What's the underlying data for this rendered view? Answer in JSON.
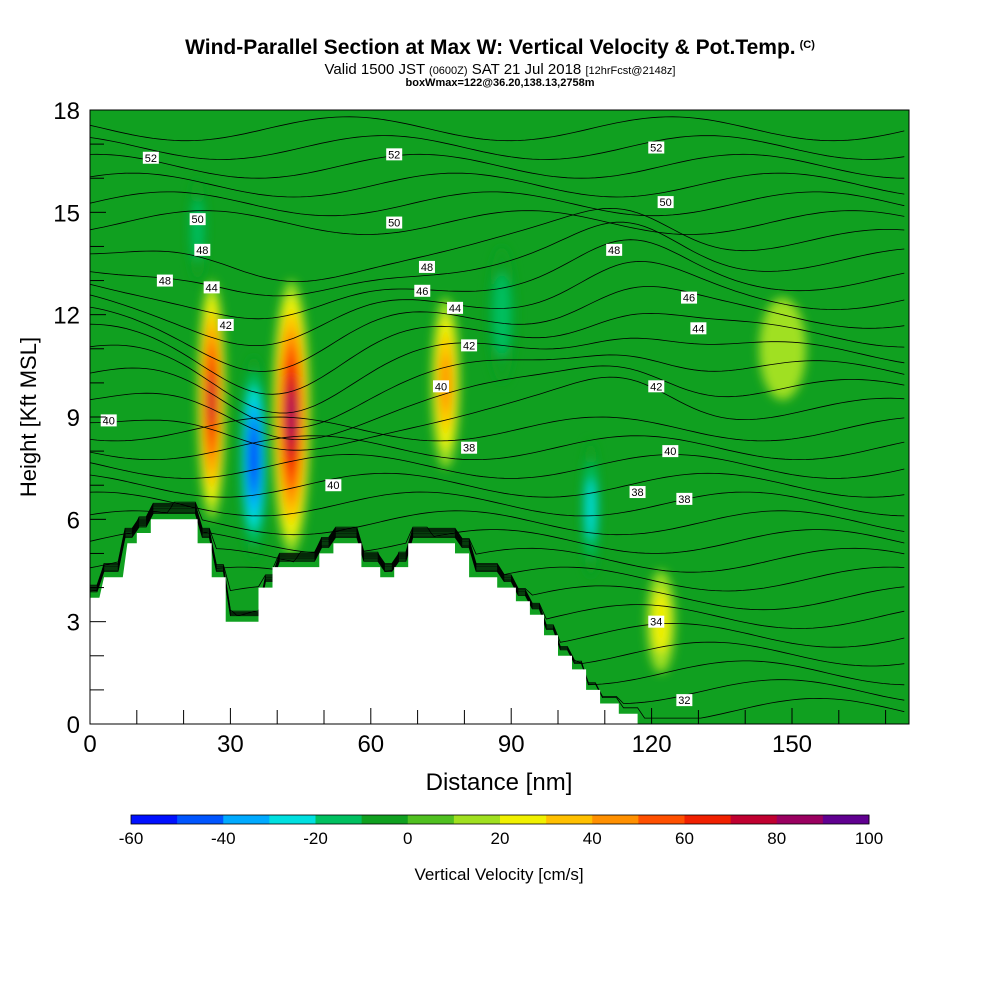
{
  "chart_data": {
    "type": "heatmap",
    "title": "Wind-Parallel Section at Max W: Vertical Velocity & Pot.Temp.",
    "title_suffix": "(C)",
    "subtitle": {
      "valid": "Valid 1500 JST",
      "utc": "(0600Z)",
      "date": "SAT 21 Jul 2018",
      "forecast": "[12hrFcst@2148z]"
    },
    "info_line": "boxWmax=122@36.20,138.13,2758m",
    "xlabel": "Distance [nm]",
    "ylabel": "Height [Kft MSL]",
    "xlim": [
      0,
      175
    ],
    "ylim": [
      0,
      18
    ],
    "x_ticks": [
      "0",
      "30",
      "60",
      "90",
      "120",
      "150"
    ],
    "y_ticks": [
      "0",
      "3",
      "6",
      "9",
      "12",
      "15",
      "18"
    ],
    "colorbar": {
      "label": "Vertical Velocity [cm/s]",
      "tick_labels": [
        "-60",
        "-40",
        "-20",
        "0",
        "20",
        "40",
        "60",
        "80",
        "100"
      ],
      "levels": [
        -60,
        -50,
        -40,
        -30,
        -20,
        -10,
        0,
        10,
        20,
        30,
        40,
        50,
        60,
        70,
        80,
        90,
        100
      ],
      "colors": [
        "#0010ff",
        "#0055ff",
        "#00aaff",
        "#00e0e0",
        "#00c060",
        "#10a020",
        "#50c020",
        "#a0e020",
        "#f0f000",
        "#ffc000",
        "#ff9000",
        "#ff5000",
        "#f02000",
        "#c00030",
        "#9a0060",
        "#600090"
      ]
    },
    "vertical_velocity_cells": [
      {
        "x": 26,
        "y": 9.5,
        "rx": 3,
        "ry": 3.5,
        "w": 70
      },
      {
        "x": 35,
        "y": 7.8,
        "rx": 3,
        "ry": 3.0,
        "w": -55
      },
      {
        "x": 43,
        "y": 9.0,
        "rx": 4,
        "ry": 4.0,
        "w": 80
      },
      {
        "x": 76,
        "y": 10.0,
        "rx": 3,
        "ry": 2.5,
        "w": 45
      },
      {
        "x": 88,
        "y": 12.0,
        "rx": 3,
        "ry": 2.0,
        "w": -15
      },
      {
        "x": 107,
        "y": 6.3,
        "rx": 2,
        "ry": 2.0,
        "w": -25
      },
      {
        "x": 122,
        "y": 3.0,
        "rx": 3,
        "ry": 1.5,
        "w": 22
      },
      {
        "x": 23,
        "y": 14.5,
        "rx": 2,
        "ry": 1.5,
        "w": -20
      },
      {
        "x": 148,
        "y": 11.0,
        "rx": 5,
        "ry": 1.5,
        "w": 12
      }
    ],
    "theta_contour_labels": [
      {
        "text": "52",
        "x": 13,
        "y": 16.6
      },
      {
        "text": "52",
        "x": 65,
        "y": 16.7
      },
      {
        "text": "52",
        "x": 121,
        "y": 16.9
      },
      {
        "text": "50",
        "x": 23,
        "y": 14.8
      },
      {
        "text": "50",
        "x": 65,
        "y": 14.7
      },
      {
        "text": "50",
        "x": 123,
        "y": 15.3
      },
      {
        "text": "48",
        "x": 24,
        "y": 13.9
      },
      {
        "text": "48",
        "x": 16,
        "y": 13.0
      },
      {
        "text": "48",
        "x": 72,
        "y": 13.4
      },
      {
        "text": "48",
        "x": 112,
        "y": 13.9
      },
      {
        "text": "46",
        "x": 71,
        "y": 12.7
      },
      {
        "text": "46",
        "x": 128,
        "y": 12.5
      },
      {
        "text": "44",
        "x": 26,
        "y": 12.8
      },
      {
        "text": "44",
        "x": 78,
        "y": 12.2
      },
      {
        "text": "44",
        "x": 130,
        "y": 11.6
      },
      {
        "text": "42",
        "x": 29,
        "y": 11.7
      },
      {
        "text": "42",
        "x": 81,
        "y": 11.1
      },
      {
        "text": "42",
        "x": 121,
        "y": 9.9
      },
      {
        "text": "40",
        "x": 4,
        "y": 8.9
      },
      {
        "text": "40",
        "x": 52,
        "y": 7.0
      },
      {
        "text": "40",
        "x": 75,
        "y": 9.9
      },
      {
        "text": "40",
        "x": 124,
        "y": 8.0
      },
      {
        "text": "38",
        "x": 81,
        "y": 8.1
      },
      {
        "text": "38",
        "x": 117,
        "y": 6.8
      },
      {
        "text": "38",
        "x": 127,
        "y": 6.6
      },
      {
        "text": "34",
        "x": 121,
        "y": 3.0
      },
      {
        "text": "32",
        "x": 127,
        "y": 0.7
      }
    ],
    "terrain": [
      [
        0,
        3.7
      ],
      [
        2,
        3.7
      ],
      [
        3,
        4.3
      ],
      [
        7,
        4.3
      ],
      [
        8,
        5.3
      ],
      [
        10,
        5.3
      ],
      [
        10,
        5.6
      ],
      [
        13,
        5.6
      ],
      [
        13,
        6.0
      ],
      [
        23,
        6.0
      ],
      [
        23,
        5.3
      ],
      [
        26,
        5.3
      ],
      [
        26,
        4.3
      ],
      [
        29,
        4.3
      ],
      [
        29,
        3.0
      ],
      [
        36,
        3.0
      ],
      [
        36,
        4.0
      ],
      [
        39,
        4.0
      ],
      [
        39,
        4.6
      ],
      [
        49,
        4.6
      ],
      [
        49,
        5.0
      ],
      [
        52,
        5.0
      ],
      [
        52,
        5.3
      ],
      [
        58,
        5.3
      ],
      [
        58,
        4.6
      ],
      [
        62,
        4.6
      ],
      [
        62,
        4.3
      ],
      [
        65,
        4.3
      ],
      [
        65,
        4.6
      ],
      [
        68,
        4.6
      ],
      [
        68,
        5.3
      ],
      [
        78,
        5.3
      ],
      [
        78,
        5.0
      ],
      [
        81,
        5.0
      ],
      [
        81,
        4.3
      ],
      [
        87,
        4.3
      ],
      [
        87,
        4.0
      ],
      [
        91,
        4.0
      ],
      [
        91,
        3.6
      ],
      [
        94,
        3.6
      ],
      [
        94,
        3.2
      ],
      [
        97,
        3.2
      ],
      [
        97,
        2.6
      ],
      [
        100,
        2.6
      ],
      [
        100,
        2.0
      ],
      [
        103,
        2.0
      ],
      [
        103,
        1.6
      ],
      [
        106,
        1.6
      ],
      [
        106,
        1.0
      ],
      [
        109,
        1.0
      ],
      [
        109,
        0.6
      ],
      [
        113,
        0.6
      ],
      [
        113,
        0.3
      ],
      [
        117,
        0.3
      ],
      [
        117,
        0.0
      ],
      [
        0,
        0.0
      ]
    ]
  }
}
